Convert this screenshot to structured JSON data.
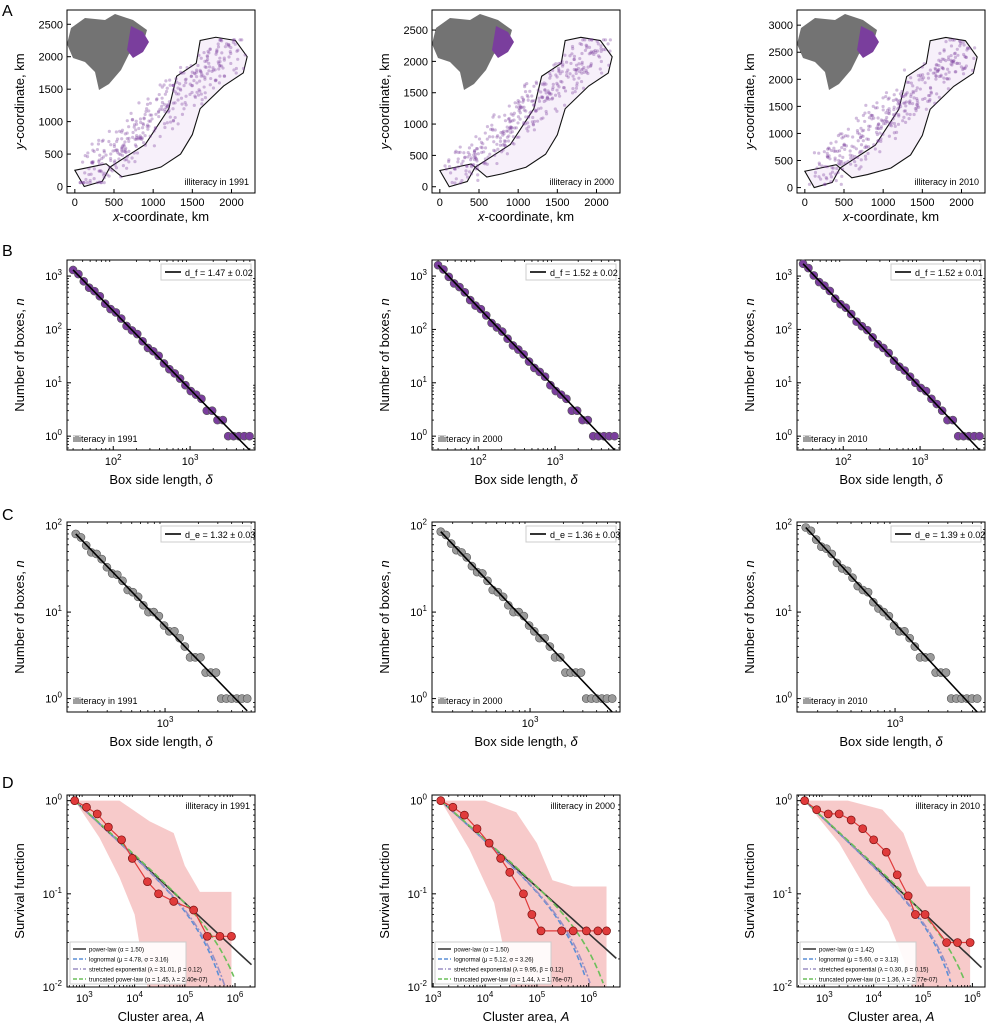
{
  "figure": {
    "row_labels": [
      "A",
      "B",
      "C",
      "D"
    ],
    "titles": [
      "illiteracy in 1991",
      "illiteracy in 2000",
      "illiteracy in 2010"
    ]
  },
  "colors": {
    "purple": "#7a3e9d",
    "purple_light": "#b48ccb",
    "gray_marker": "#9a9a9a",
    "map_gray": "#737373",
    "red_marker": "#e03b3b",
    "red_band": "#f4b3b3",
    "powerlaw": "#333333",
    "lognormal": "#5b8fd6",
    "stretched": "#9b8fc4",
    "truncated": "#6cbf5a"
  },
  "chart_data": [
    {
      "row": "A",
      "type": "scatter",
      "xlabel_var": "x",
      "xlabel_rest": "-coordinate, km",
      "ylabel_var": "y",
      "ylabel_rest": "-coordinate, km",
      "xticks": [
        0,
        500,
        1000,
        1500,
        2000
      ],
      "panels": [
        {
          "title": "illiteracy in 1991",
          "xlim": [
            -100,
            2300
          ],
          "ylim": [
            -100,
            2720
          ],
          "yticks": [
            0,
            500,
            1000,
            1500,
            2000,
            2500
          ]
        },
        {
          "title": "illiteracy in 2000",
          "xlim": [
            -100,
            2300
          ],
          "ylim": [
            -100,
            2820
          ],
          "yticks": [
            0,
            500,
            1000,
            1500,
            2000,
            2500
          ]
        },
        {
          "title": "illiteracy in 2010",
          "xlim": [
            -100,
            2300
          ],
          "ylim": [
            -100,
            3280
          ],
          "yticks": [
            0,
            500,
            1000,
            1500,
            2000,
            2500,
            3000
          ]
        }
      ],
      "outline": [
        [
          120,
          0
        ],
        [
          350,
          80
        ],
        [
          450,
          300
        ],
        [
          900,
          650
        ],
        [
          1200,
          1200
        ],
        [
          1300,
          1700
        ],
        [
          1550,
          1900
        ],
        [
          1600,
          2250
        ],
        [
          1800,
          2300
        ],
        [
          2050,
          2250
        ],
        [
          2200,
          2000
        ],
        [
          2150,
          1750
        ],
        [
          1900,
          1550
        ],
        [
          1600,
          1200
        ],
        [
          1500,
          800
        ],
        [
          1350,
          500
        ],
        [
          1100,
          300
        ],
        [
          800,
          200
        ],
        [
          600,
          150
        ],
        [
          400,
          350
        ],
        [
          200,
          300
        ],
        [
          0,
          250
        ]
      ]
    },
    {
      "row": "B",
      "type": "scatter",
      "scale": "log-log",
      "xlabel": "Box side length, ",
      "xlabel_var": "δ",
      "ylabel": "Number of boxes, ",
      "ylabel_var": "n",
      "xlim": [
        25,
        7000
      ],
      "ylim": [
        0.55,
        2000
      ],
      "xticks": [
        "10^2",
        "10^3"
      ],
      "yticks": [
        "10^0",
        "10^1",
        "10^2",
        "10^3"
      ],
      "panels": [
        {
          "title": "illiteracy in 1991",
          "legend": "d_f = 1.47 ± 0.02",
          "slope": -1.47,
          "n0": 1300
        },
        {
          "title": "illiteracy in 2000",
          "legend": "d_f = 1.52 ± 0.02",
          "slope": -1.52,
          "n0": 1600
        },
        {
          "title": "illiteracy in 2010",
          "legend": "d_f = 1.52 ± 0.01",
          "slope": -1.52,
          "n0": 1700
        }
      ]
    },
    {
      "row": "C",
      "type": "scatter",
      "scale": "log-log",
      "xlabel": "Box side length, ",
      "xlabel_var": "δ",
      "ylabel": "Number of boxes, ",
      "ylabel_var": "n",
      "xlim": [
        130,
        6500
      ],
      "ylim": [
        0.7,
        110
      ],
      "xticks": [
        "10^3"
      ],
      "yticks": [
        "10^0",
        "10^1",
        "10^2"
      ],
      "panels": [
        {
          "title": "illiteracy in 1991",
          "legend": "d_e = 1.32 ± 0.03",
          "slope": -1.32,
          "n0": 80
        },
        {
          "title": "illiteracy in 2000",
          "legend": "d_e = 1.36 ± 0.03",
          "slope": -1.36,
          "n0": 85
        },
        {
          "title": "illiteracy in 2010",
          "legend": "d_e = 1.39 ± 0.02",
          "slope": -1.39,
          "n0": 95
        }
      ]
    },
    {
      "row": "D",
      "type": "line",
      "scale": "log-log",
      "xlabel": "Cluster area, ",
      "xlabel_var": "A",
      "ylabel": "Survival function",
      "ylim": [
        0.01,
        1.15
      ],
      "yticks": [
        "10^-2",
        "10^-1",
        "10^0"
      ],
      "panels": [
        {
          "title": "illiteracy in 1991",
          "xlim": [
            450,
            2500000
          ],
          "xticks": [
            "10^3",
            "10^4",
            "10^5",
            "10^6"
          ],
          "legend": [
            "power-law (α = 1.50)",
            "lognormal (μ = 4.78, σ = 3.16)",
            "stretched exponential (λ = 31.01, β = 0.12)",
            "truncated power-law (α = 1.45, λ = 2.40e-07)"
          ],
          "points": [
            [
              640,
              1.0
            ],
            [
              1100,
              0.85
            ],
            [
              1800,
              0.72
            ],
            [
              3000,
              0.52
            ],
            [
              5500,
              0.38
            ],
            [
              9000,
              0.24
            ],
            [
              18000,
              0.135
            ],
            [
              30000,
              0.1
            ],
            [
              60000,
              0.083
            ],
            [
              150000,
              0.067
            ],
            [
              280000,
              0.035
            ],
            [
              500000,
              0.035
            ],
            [
              850000,
              0.035
            ]
          ],
          "band_upper": [
            [
              640,
              1.0
            ],
            [
              2000,
              1.0
            ],
            [
              5000,
              1.0
            ],
            [
              20000,
              0.6
            ],
            [
              60000,
              0.45
            ],
            [
              100000,
              0.2
            ],
            [
              200000,
              0.105
            ],
            [
              850000,
              0.105
            ]
          ],
          "band_lower": [
            [
              640,
              1.0
            ],
            [
              2000,
              0.4
            ],
            [
              5000,
              0.15
            ],
            [
              10000,
              0.06
            ],
            [
              14000,
              0.02
            ],
            [
              18000,
              0.01
            ],
            [
              850000,
              0.01
            ]
          ]
        },
        {
          "title": "illiteracy in 2000",
          "xlim": [
            950,
            4000000
          ],
          "xticks": [
            "10^3",
            "10^4",
            "10^5",
            "10^6"
          ],
          "legend": [
            "power-law (α = 1.50)",
            "lognormal (μ = 5.12, σ = 3.26)",
            "stretched exponential (λ = 9.95, β = 0.12)",
            "truncated power-law (α = 1.44, λ = 1.76e-07)"
          ],
          "points": [
            [
              1400,
              1.0
            ],
            [
              2400,
              0.85
            ],
            [
              4000,
              0.7
            ],
            [
              7000,
              0.5
            ],
            [
              12000,
              0.35
            ],
            [
              20000,
              0.24
            ],
            [
              30000,
              0.17
            ],
            [
              55000,
              0.1
            ],
            [
              80000,
              0.06
            ],
            [
              120000,
              0.04
            ],
            [
              300000,
              0.04
            ],
            [
              500000,
              0.04
            ],
            [
              900000,
              0.04
            ],
            [
              1500000,
              0.04
            ],
            [
              2200000,
              0.04
            ]
          ],
          "band_upper": [
            [
              1400,
              1.0
            ],
            [
              10000,
              1.0
            ],
            [
              40000,
              0.75
            ],
            [
              100000,
              0.35
            ],
            [
              200000,
              0.14
            ],
            [
              500000,
              0.12
            ],
            [
              2200000,
              0.12
            ]
          ],
          "band_lower": [
            [
              1400,
              1.0
            ],
            [
              5000,
              0.3
            ],
            [
              15000,
              0.08
            ],
            [
              25000,
              0.02
            ],
            [
              32000,
              0.01
            ],
            [
              2200000,
              0.01
            ]
          ]
        },
        {
          "title": "illiteracy in 2010",
          "xlim": [
            280,
            1800000
          ],
          "xticks": [
            "10^3",
            "10^4",
            "10^5",
            "10^6"
          ],
          "legend": [
            "power-law (α = 1.42)",
            "lognormal (μ = 5.60, σ = 3.13)",
            "stretched exponential (λ = 0.30, β = 0.15)",
            "truncated power-law (α = 1.36, λ = 2.77e-07)"
          ],
          "points": [
            [
              400,
              1.0
            ],
            [
              700,
              0.8
            ],
            [
              1200,
              0.72
            ],
            [
              2000,
              0.72
            ],
            [
              3500,
              0.62
            ],
            [
              6000,
              0.5
            ],
            [
              10000,
              0.38
            ],
            [
              18000,
              0.28
            ],
            [
              30000,
              0.16
            ],
            [
              50000,
              0.095
            ],
            [
              70000,
              0.06
            ],
            [
              110000,
              0.06
            ],
            [
              300000,
              0.03
            ],
            [
              500000,
              0.03
            ],
            [
              900000,
              0.03
            ]
          ],
          "band_upper": [
            [
              400,
              1.0
            ],
            [
              3000,
              1.0
            ],
            [
              15000,
              0.8
            ],
            [
              40000,
              0.45
            ],
            [
              80000,
              0.17
            ],
            [
              120000,
              0.12
            ],
            [
              900000,
              0.12
            ]
          ],
          "band_lower": [
            [
              400,
              1.0
            ],
            [
              2000,
              0.35
            ],
            [
              8000,
              0.1
            ],
            [
              20000,
              0.05
            ],
            [
              40000,
              0.02
            ],
            [
              60000,
              0.01
            ],
            [
              900000,
              0.01
            ]
          ]
        }
      ]
    }
  ]
}
